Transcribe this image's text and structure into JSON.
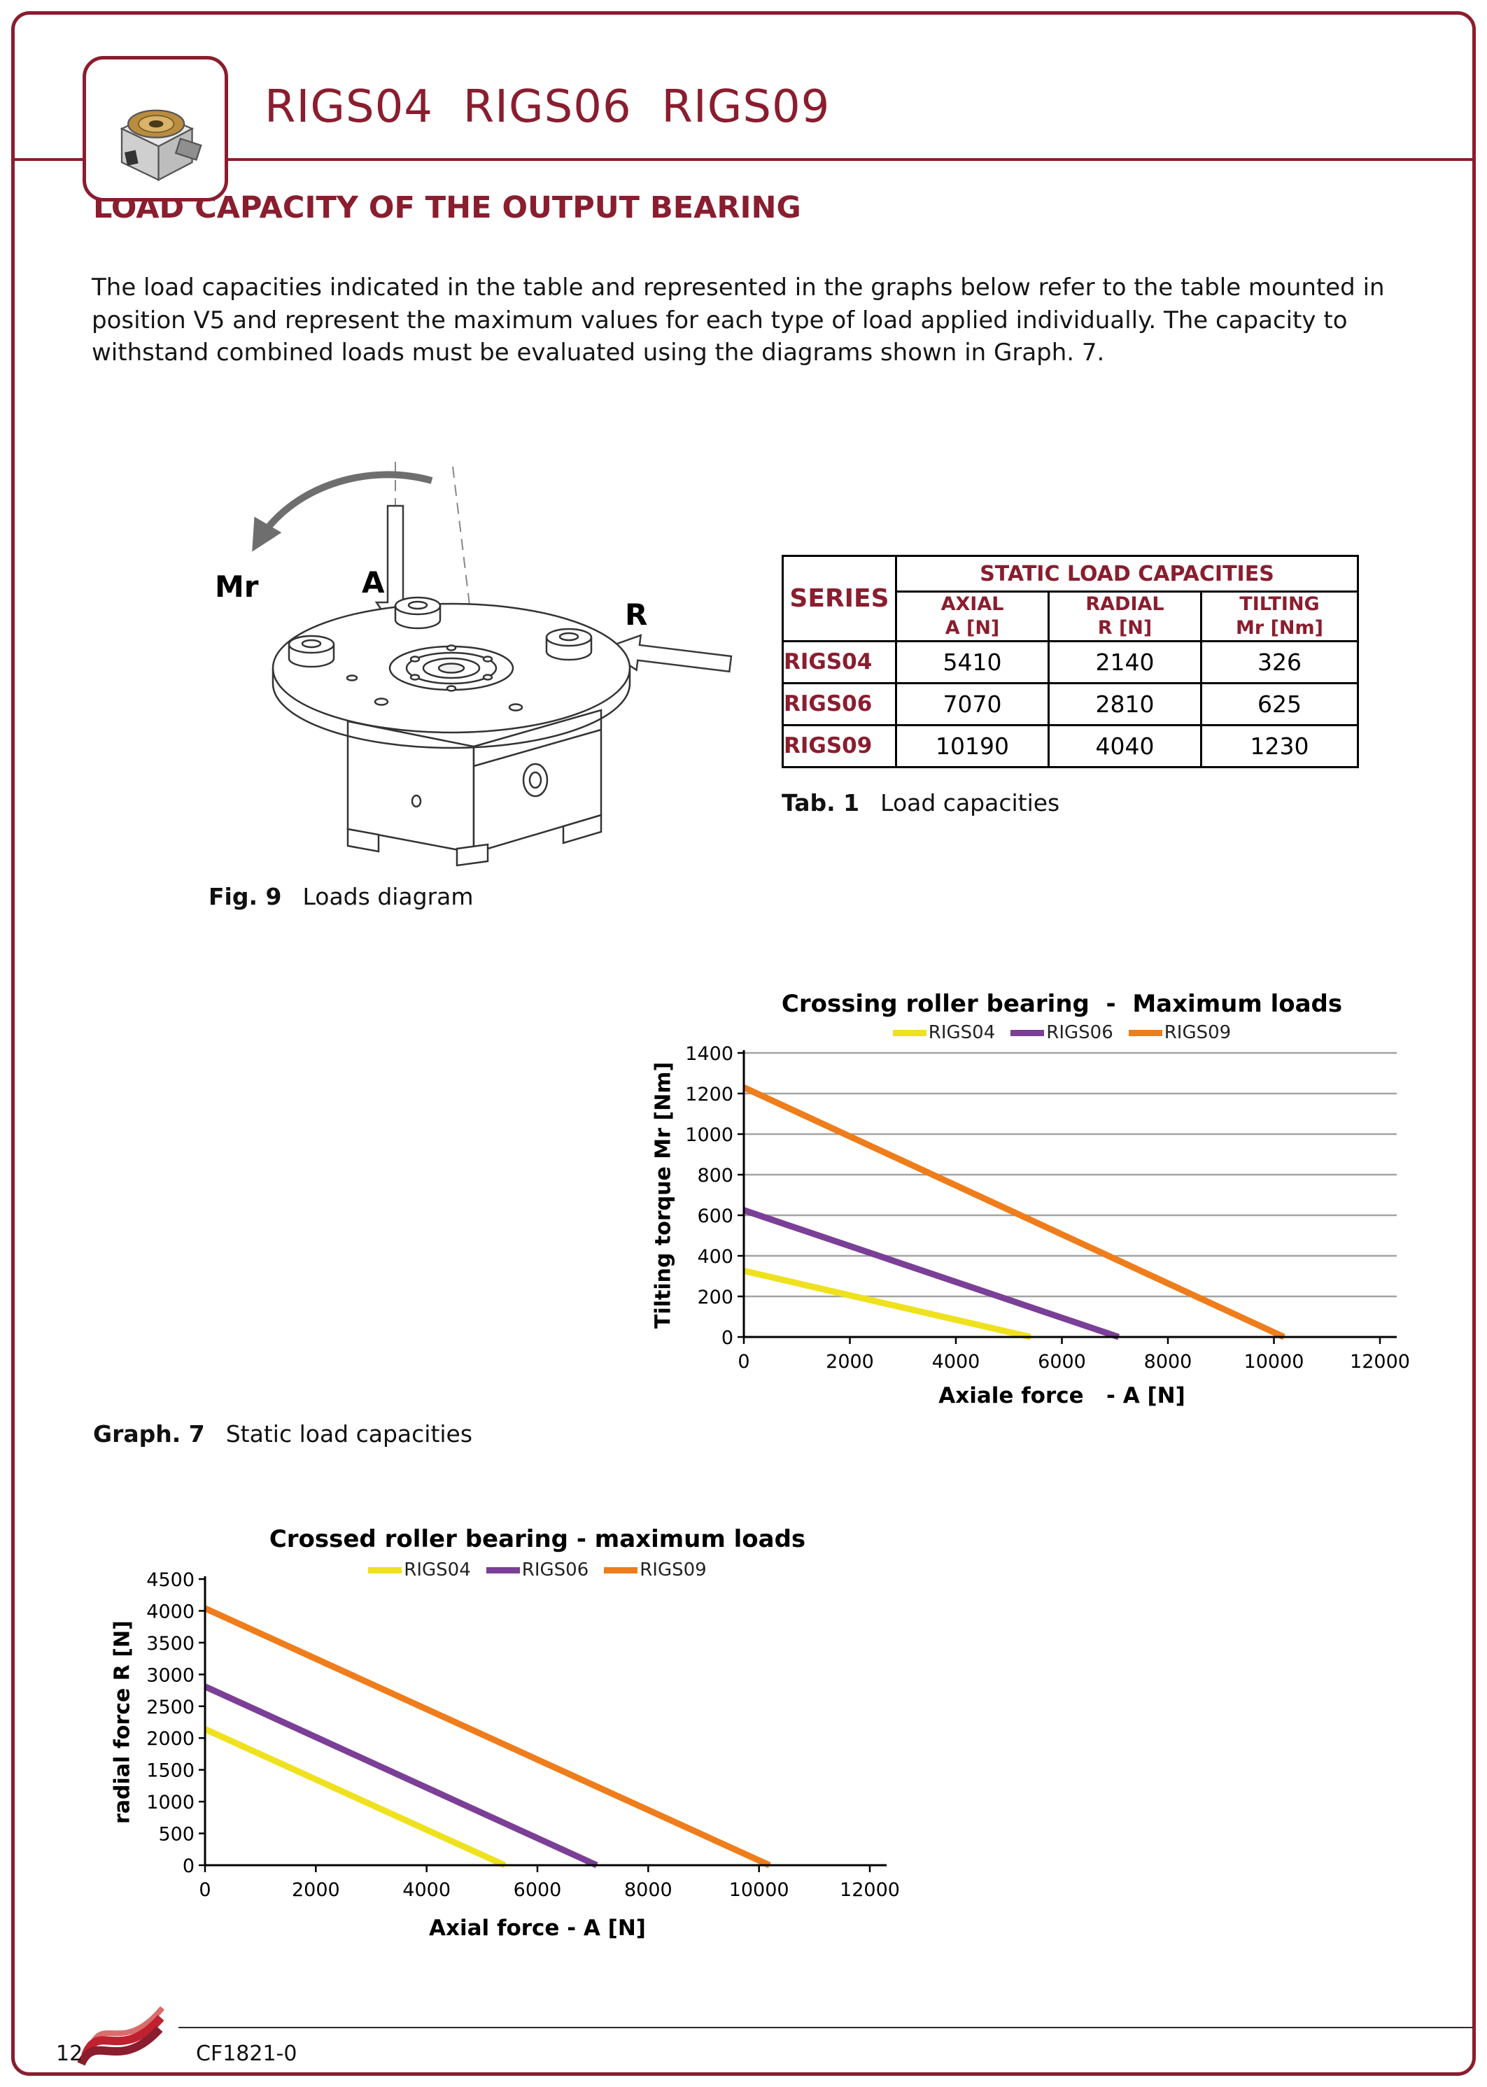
{
  "header": {
    "title": "RIGS04  RIGS06  RIGS09"
  },
  "section": {
    "title": "LOAD CAPACITY OF THE OUTPUT BEARING",
    "body": "The load capacities indicated in the table and represented in the graphs below refer to the table mounted in position V5 and represent the maximum values for each type of load applied individually. The capacity to withstand combined loads must be evaluated using the diagrams shown in Graph. 7."
  },
  "figure": {
    "caption_label": "Fig. 9",
    "caption_text": "Loads diagram",
    "labels": {
      "tilting": "Mr",
      "axial": "A",
      "radial": "R"
    }
  },
  "table": {
    "title": "STATIC LOAD CAPACITIES",
    "series_header": "SERIES",
    "columns": [
      {
        "line1": "AXIAL",
        "line2": "A [N]"
      },
      {
        "line1": "RADIAL",
        "line2": "R [N]"
      },
      {
        "line1": "TILTING",
        "line2": "Mr [Nm]"
      }
    ],
    "rows": [
      {
        "series": "RIGS04",
        "axial": "5410",
        "radial": "2140",
        "tilting": "326"
      },
      {
        "series": "RIGS06",
        "axial": "7070",
        "radial": "2810",
        "tilting": "625"
      },
      {
        "series": "RIGS09",
        "axial": "10190",
        "radial": "4040",
        "tilting": "1230"
      }
    ],
    "caption_label": "Tab. 1",
    "caption_text": "Load capacities"
  },
  "graph_caption": {
    "label": "Graph. 7",
    "text": "Static load capacities"
  },
  "footer": {
    "page_number": "12",
    "doc_code": "CF1821-0"
  },
  "colors": {
    "accent": "#8a1d2e",
    "rigs04": "#efe11d",
    "rigs06": "#7b3f97",
    "rigs09": "#ef7d1b",
    "grid": "#a3a3a3",
    "axis": "#000000"
  },
  "chart_data": [
    {
      "type": "line",
      "title": "Crossing roller bearing  -  Maximum loads",
      "xlabel": "Axiale force   - A [N]",
      "ylabel": "Tilting torque Mr [Nm]",
      "xlim": [
        0,
        12000
      ],
      "ylim": [
        0,
        1400
      ],
      "xticks": [
        0,
        2000,
        4000,
        6000,
        8000,
        10000,
        12000
      ],
      "yticks": [
        0,
        200,
        400,
        600,
        800,
        1000,
        1200,
        1400
      ],
      "grid": true,
      "legend_position": "top",
      "series": [
        {
          "name": "RIGS04",
          "color": "#efe11d",
          "points": [
            [
              0,
              326
            ],
            [
              5410,
              0
            ]
          ]
        },
        {
          "name": "RIGS06",
          "color": "#7b3f97",
          "points": [
            [
              0,
              625
            ],
            [
              7070,
              0
            ]
          ]
        },
        {
          "name": "RIGS09",
          "color": "#ef7d1b",
          "points": [
            [
              0,
              1230
            ],
            [
              10190,
              0
            ]
          ]
        }
      ]
    },
    {
      "type": "line",
      "title": "Crossed roller bearing - maximum loads",
      "xlabel": "Axial force - A [N]",
      "ylabel": "radial force R [N]",
      "xlim": [
        0,
        12000
      ],
      "ylim": [
        0,
        4500
      ],
      "xticks": [
        0,
        2000,
        4000,
        6000,
        8000,
        10000,
        12000
      ],
      "yticks": [
        0,
        500,
        1000,
        1500,
        2000,
        2500,
        3000,
        3500,
        4000,
        4500
      ],
      "grid": false,
      "legend_position": "top",
      "series": [
        {
          "name": "RIGS04",
          "color": "#efe11d",
          "points": [
            [
              0,
              2140
            ],
            [
              5410,
              0
            ]
          ]
        },
        {
          "name": "RIGS06",
          "color": "#7b3f97",
          "points": [
            [
              0,
              2810
            ],
            [
              7070,
              0
            ]
          ]
        },
        {
          "name": "RIGS09",
          "color": "#ef7d1b",
          "points": [
            [
              0,
              4040
            ],
            [
              10190,
              0
            ]
          ]
        }
      ]
    }
  ]
}
